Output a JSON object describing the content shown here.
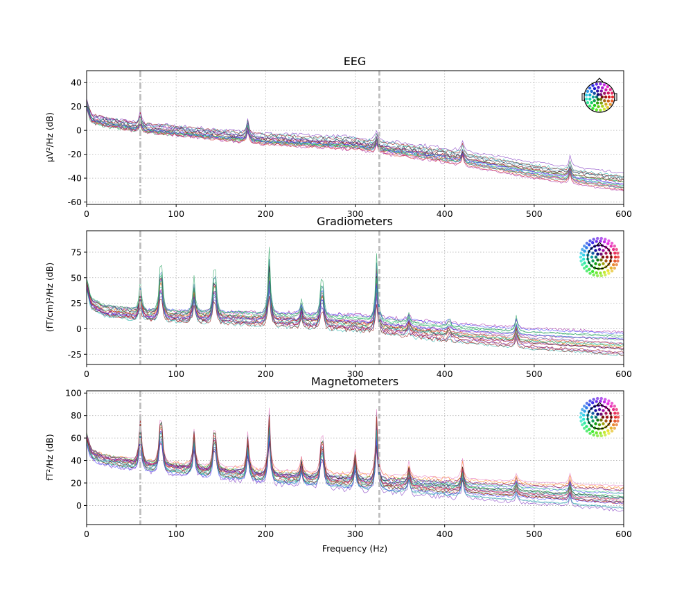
{
  "chart_data": [
    {
      "type": "line",
      "title": "EEG",
      "xlabel": "",
      "ylabel": "µV²/Hz (dB)",
      "xlim": [
        0,
        600
      ],
      "ylim": [
        -62,
        50
      ],
      "xticks": [
        0,
        100,
        200,
        300,
        400,
        500,
        600
      ],
      "yticks": [
        -60,
        -40,
        -20,
        0,
        20,
        40
      ],
      "grid": true,
      "markers": [
        {
          "x": 60,
          "style": "dash-dot",
          "color": "#bdbdbd"
        },
        {
          "x": 327,
          "style": "dashed",
          "color": "#bdbdbd"
        }
      ],
      "legend": "sensor-layout-inset top-right",
      "trend": {
        "x": [
          0,
          5,
          20,
          60,
          200,
          300,
          400,
          500,
          600
        ],
        "y": [
          22,
          10,
          7,
          2,
          -8,
          -12,
          -22,
          -35,
          -45
        ]
      },
      "peaks": [
        {
          "x": 60,
          "height": 12
        },
        {
          "x": 180,
          "height": 14
        },
        {
          "x": 324,
          "height": 10
        },
        {
          "x": 420,
          "height": 10
        },
        {
          "x": 540,
          "height": 10
        }
      ]
    },
    {
      "type": "line",
      "title": "Gradiometers",
      "xlabel": "",
      "ylabel": "(fT/cm)²/Hz (dB)",
      "xlim": [
        0,
        600
      ],
      "ylim": [
        -35,
        96
      ],
      "xticks": [
        0,
        100,
        200,
        300,
        400,
        500,
        600
      ],
      "yticks": [
        -25,
        0,
        25,
        50,
        75
      ],
      "grid": true,
      "markers": [
        {
          "x": 60,
          "style": "dash-dot",
          "color": "#bdbdbd"
        },
        {
          "x": 327,
          "style": "dashed",
          "color": "#bdbdbd"
        }
      ],
      "legend": "sensor-layout-inset top-right",
      "trend": {
        "x": [
          0,
          5,
          20,
          60,
          200,
          300,
          400,
          500,
          600
        ],
        "y": [
          45,
          25,
          18,
          14,
          10,
          6,
          -3,
          -10,
          -15
        ]
      },
      "peaks": [
        {
          "x": 60,
          "height": 30
        },
        {
          "x": 83,
          "height": 75
        },
        {
          "x": 120,
          "height": 35
        },
        {
          "x": 143,
          "height": 70
        },
        {
          "x": 204,
          "height": 65
        },
        {
          "x": 240,
          "height": 15
        },
        {
          "x": 263,
          "height": 60
        },
        {
          "x": 324,
          "height": 65
        },
        {
          "x": 360,
          "height": 10
        },
        {
          "x": 405,
          "height": 10
        },
        {
          "x": 480,
          "height": 15
        }
      ]
    },
    {
      "type": "line",
      "title": "Magnetometers",
      "xlabel": "Frequency (Hz)",
      "ylabel": "fT²/Hz (dB)",
      "xlim": [
        0,
        600
      ],
      "ylim": [
        -17,
        102
      ],
      "xticks": [
        0,
        100,
        200,
        300,
        400,
        500,
        600
      ],
      "yticks": [
        0,
        20,
        40,
        60,
        80,
        100
      ],
      "grid": true,
      "markers": [
        {
          "x": 60,
          "style": "dash-dot",
          "color": "#bdbdbd"
        },
        {
          "x": 327,
          "style": "dashed",
          "color": "#bdbdbd"
        }
      ],
      "legend": "sensor-layout-inset top-right",
      "trend": {
        "x": [
          0,
          5,
          20,
          60,
          200,
          300,
          400,
          500,
          600
        ],
        "y": [
          60,
          45,
          40,
          35,
          25,
          20,
          15,
          10,
          5
        ]
      },
      "peaks": [
        {
          "x": 60,
          "height": 45
        },
        {
          "x": 83,
          "height": 70
        },
        {
          "x": 120,
          "height": 35
        },
        {
          "x": 143,
          "height": 60
        },
        {
          "x": 180,
          "height": 35
        },
        {
          "x": 204,
          "height": 60
        },
        {
          "x": 240,
          "height": 15
        },
        {
          "x": 263,
          "height": 60
        },
        {
          "x": 300,
          "height": 25
        },
        {
          "x": 324,
          "height": 65
        },
        {
          "x": 360,
          "height": 15
        },
        {
          "x": 420,
          "height": 20
        },
        {
          "x": 480,
          "height": 8
        },
        {
          "x": 540,
          "height": 10
        }
      ]
    }
  ],
  "palette": [
    "#1f9e5a",
    "#2ecc71",
    "#7b2fbf",
    "#a020a0",
    "#d62728",
    "#8b0000",
    "#3c3cff",
    "#20b2aa",
    "#ff7f0e",
    "#e377c2",
    "#4682b4",
    "#222222"
  ]
}
